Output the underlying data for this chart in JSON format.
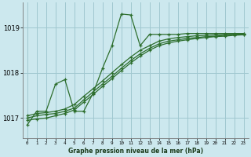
{
  "title": "Graphe pression niveau de la mer (hPa)",
  "bg_color": "#cce8ee",
  "grid_color": "#a0c8d0",
  "line_color": "#2d6e2d",
  "ylim": [
    1016.55,
    1019.55
  ],
  "yticks": [
    1017,
    1018,
    1019
  ],
  "ytick_labels": [
    "1017",
    "1018",
    "1019"
  ],
  "xticks": [
    0,
    1,
    2,
    3,
    4,
    5,
    6,
    7,
    8,
    9,
    10,
    11,
    12,
    13,
    14,
    15,
    16,
    17,
    18,
    19,
    20,
    21,
    22,
    23
  ],
  "series": [
    [
      1016.85,
      1017.15,
      1017.15,
      1017.75,
      1017.85,
      1017.15,
      1017.15,
      1017.55,
      1018.1,
      1018.6,
      1019.3,
      1019.28,
      1018.6,
      1018.85,
      1018.85,
      1018.85,
      1018.85,
      1018.87,
      1018.87,
      1018.87,
      1018.87,
      1018.87,
      1018.87,
      1018.87
    ],
    [
      1017.05,
      1017.1,
      1017.12,
      1017.15,
      1017.2,
      1017.3,
      1017.48,
      1017.65,
      1017.82,
      1018.0,
      1018.18,
      1018.35,
      1018.5,
      1018.6,
      1018.7,
      1018.75,
      1018.78,
      1018.8,
      1018.82,
      1018.83,
      1018.84,
      1018.85,
      1018.85,
      1018.86
    ],
    [
      1017.0,
      1017.05,
      1017.08,
      1017.1,
      1017.15,
      1017.22,
      1017.4,
      1017.58,
      1017.75,
      1017.92,
      1018.1,
      1018.27,
      1018.42,
      1018.54,
      1018.64,
      1018.7,
      1018.73,
      1018.76,
      1018.78,
      1018.8,
      1018.81,
      1018.83,
      1018.84,
      1018.85
    ],
    [
      1016.95,
      1016.98,
      1017.0,
      1017.05,
      1017.1,
      1017.18,
      1017.35,
      1017.52,
      1017.7,
      1017.87,
      1018.05,
      1018.22,
      1018.37,
      1018.5,
      1018.6,
      1018.66,
      1018.7,
      1018.73,
      1018.76,
      1018.78,
      1018.8,
      1018.81,
      1018.83,
      1018.84
    ]
  ]
}
